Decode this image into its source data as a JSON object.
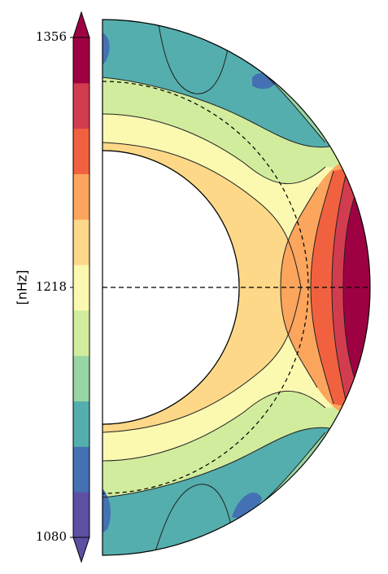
{
  "chart_data": {
    "type": "heatmap",
    "title": "",
    "subtitle": "",
    "geometry": "meridional half-disk (rotation profile)",
    "colorbar": {
      "label": "[nHz]",
      "ticks": [
        {
          "value": 1356,
          "label": "1356"
        },
        {
          "value": 1218,
          "label": "1218"
        },
        {
          "value": 1080,
          "label": "1080"
        }
      ],
      "range": [
        1080,
        1356
      ],
      "extend": "both",
      "levels": [
        1080,
        1103,
        1126,
        1149,
        1172,
        1195,
        1218,
        1241,
        1264,
        1287,
        1310,
        1333,
        1356
      ],
      "colors": [
        "#5e4fa2",
        "#4371b3",
        "#54aead",
        "#98d5a4",
        "#d1ec9c",
        "#fbf8b0",
        "#fdd888",
        "#fca55d",
        "#f1613f",
        "#d23c4f",
        "#9e0142"
      ]
    },
    "zones": [
      {
        "region": "inner core boundary shell",
        "level": 1225
      },
      {
        "region": "equatorial outer region",
        "level": 1350
      },
      {
        "region": "high latitude north",
        "level": 1140
      },
      {
        "region": "high latitude south",
        "level": 1130
      }
    ],
    "reference_lines": {
      "equator": "dashed",
      "tachocline": "dashed circle",
      "rotation_axis": "dashed"
    }
  }
}
